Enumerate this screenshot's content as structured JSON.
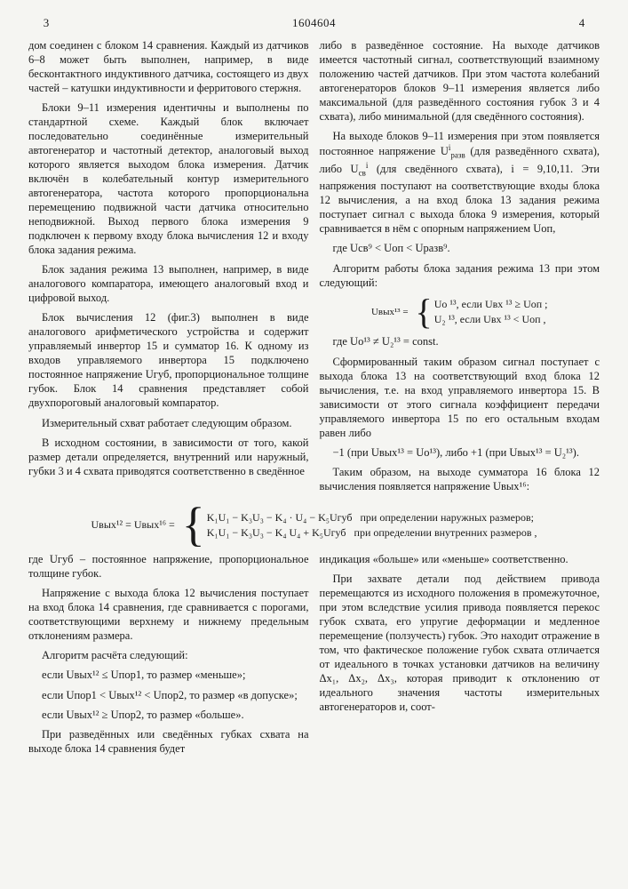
{
  "doc_number": "1604604",
  "page_left": "3",
  "page_right": "4",
  "line_numbers": [
    "5",
    "10",
    "15",
    "20",
    "25",
    "30",
    "35"
  ],
  "col_left": {
    "p1": "дом соединен с блоком 14 сравнения. Каждый из датчиков 6–8 может быть выполнен, например, в виде бесконтактного индуктивного датчика, состоящего из двух частей – катушки индуктивности и ферритового стержня.",
    "p2": "Блоки 9–11 измерения идентичны и выполнены по стандартной схеме. Каждый блок включает последовательно соединённые измерительный автогенератор и частотный детектор, аналоговый выход которого является выходом блока измерения. Датчик включён в колебательный контур измерительного автогенератора, частота которого пропорциональна перемещению подвижной части датчика относительно неподвижной. Выход первого блока измерения 9 подключен к первому входу блока вычисления 12 и входу блока задания режима.",
    "p3": "Блок задания режима 13 выполнен, например, в виде аналогового компаратора, имеющего аналоговый вход и цифровой выход.",
    "p4": "Блок вычисления 12 (фиг.3) выполнен в виде аналогового арифметического устройства и содержит управляемый инвертор 15 и сумматор 16. К одному из входов управляемого инвертора 15 подключено постоянное напряжение Uгуб, пропорциональное толщине губок. Блок 14 сравнения представляет собой двухпороговый аналоговый компаратор.",
    "p5": "Измерительный схват работает следующим образом.",
    "p6": "В исходном состоянии, в зависимости от того, какой размер детали определяется, внутренний или наружный, губки 3 и 4 схвата приводятся соответственно в сведённое"
  },
  "col_right": {
    "p1": "либо в разведённое состояние. На выходе датчиков имеется частотный сигнал, соответствующий взаимному положению частей датчиков. При этом частота колебаний автогенераторов блоков 9–11 измерения является либо максимальной (для разведённого состояния губок 3 и 4 схвата), либо минимальной (для сведённого состояния).",
    "p2a": "На выходе блоков 9–11 измерения при этом появляется постоянное напряжение U",
    "p2_sub1": "i",
    "p2_sup1": "разв",
    "p2b": " (для разведённого схвата), либо U",
    "p2_sub2": "св",
    "p2_sup2": "i",
    "p2c": " (для сведённого схвата), i = 9,10,11. Эти напряжения поступают на соответствующие входы блока 12 вычисления, а на вход блока 13 задания режима поступает сигнал с выхода блока 9 измерения, который сравнивается в нём с опорным напряжением Uоп,",
    "ineq_left": "где U",
    "ineq": "св⁹ < Uоп < Uразв⁹.",
    "p3": "Алгоритм работы блока задания режима 13 при этом следующий:",
    "formula1_lhs": "Uвых¹³ =",
    "formula1_case1": "Uo ¹³, если Uвх ¹³ ≥ Uоп ;",
    "formula1_case2": "U₂ ¹³, если Uвх ¹³ < Uоп ,",
    "formula1_note": "где Uo¹³ ≠ U₂¹³ = const.",
    "p4": "Сформированный таким образом сигнал поступает с выхода блока 13 на соответствующий вход блока 12 вычисления, т.е. на вход управляемого инвертора 15. В зависимости от этого сигнала коэффициент передачи управляемого инвертора 15 по его остальным входам равен либо",
    "p4_tail1": "−1 (при Uвых¹³ = Uo¹³), либо +1 (при Uвых¹³ = U₂¹³).",
    "p5": "Таким образом, на выходе сумматора 16 блока 12 вычисления появляется напряжение Uвых¹⁶:"
  },
  "big_formula": {
    "lhs": "Uвых¹² = Uвых¹⁶ =",
    "case1_expr": "K₁U₁ − K₃U₃ − K₄ · U₄ − K₅Uгуб",
    "case1_cond": "при определении наружных размеров;",
    "case2_expr": "K₁U₁ − K₃U₃ − K₄ U₄ + K₅Uгуб",
    "case2_cond": "при определении внутренних размеров ,"
  },
  "line_num_45": "45",
  "line_num_50": "50",
  "line_num_55": "55",
  "bottom_left": {
    "p1": "где Uгуб – постоянное напряжение, пропорциональное толщине губок.",
    "p2": "Напряжение с выхода блока 12 вычисления поступает на вход блока 14 сравнения, где сравнивается с порогами, соответствующими верхнему и нижнему предельным отклонениям размера.",
    "p3": "Алгоритм расчёта следующий:",
    "p4": "если Uвых¹² ≤ Uпор1, то размер «меньше»;",
    "p5": "если Uпор1 < Uвых¹² < Uпор2, то размер «в допуске»;",
    "p6": "если Uвых¹² ≥ Uпор2, то размер «больше».",
    "p7": "При разведённых или сведённых губках схвата на выходе блока 14 сравнения будет"
  },
  "bottom_right": {
    "p1": "индикация «больше» или «меньше» соответственно.",
    "p2": "При захвате детали под действием привода перемещаются из исходного положения в промежуточное, при этом вследствие усилия привода появляется перекос губок схвата, его упругие деформации и медленное перемещение (ползучесть) губок. Это находит отражение в том, что фактическое положение губок схвата отличается от идеального в точках установки датчиков на величину Δx₁, Δx₂, Δx₃, которая приводит к отклонению от идеального значения частоты измерительных автогенераторов и, соот-"
  }
}
